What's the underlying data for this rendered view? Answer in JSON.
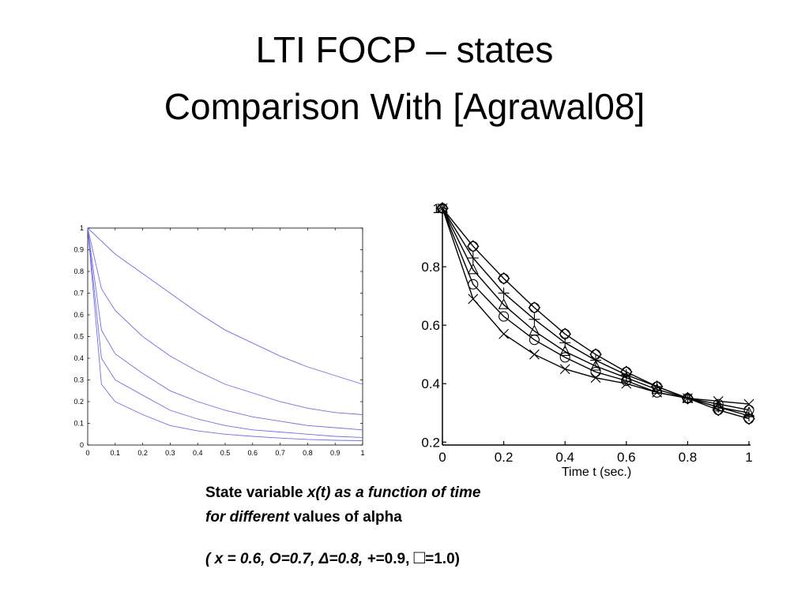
{
  "title": {
    "line1": "LTI FOCP – states",
    "line2": "Comparison With [Agrawal08]"
  },
  "caption": {
    "line1_a": "State variable ",
    "line1_b": "x(t) as a function of time",
    "line2_a": "for different",
    "line2_b": " values of alpha",
    "line3_a": "( x = 0.6,  O=0.7, Δ=0.8, +",
    "line3_b": "=0.9, ",
    "line3_box": "□",
    "line3_c": "=1.0)"
  },
  "chart_data": [
    {
      "type": "line",
      "title": "",
      "xlabel": "",
      "ylabel": "",
      "xlim": [
        0,
        1
      ],
      "ylim": [
        0,
        1
      ],
      "xticks": [
        "0",
        "0.1",
        "0.2",
        "0.3",
        "0.4",
        "0.5",
        "0.6",
        "0.7",
        "0.8",
        "0.9",
        "1"
      ],
      "yticks": [
        "0",
        "0.1",
        "0.2",
        "0.3",
        "0.4",
        "0.5",
        "0.6",
        "0.7",
        "0.8",
        "0.9",
        "1"
      ],
      "line_color": "#6f6fe6",
      "x": [
        0,
        0.05,
        0.1,
        0.2,
        0.3,
        0.4,
        0.5,
        0.6,
        0.7,
        0.8,
        0.9,
        1.0
      ],
      "series": [
        {
          "values": [
            1,
            0.94,
            0.88,
            0.79,
            0.7,
            0.61,
            0.53,
            0.47,
            0.41,
            0.36,
            0.32,
            0.28
          ]
        },
        {
          "values": [
            1,
            0.72,
            0.62,
            0.5,
            0.41,
            0.34,
            0.28,
            0.24,
            0.2,
            0.17,
            0.15,
            0.14
          ]
        },
        {
          "values": [
            1,
            0.53,
            0.42,
            0.33,
            0.25,
            0.2,
            0.16,
            0.13,
            0.11,
            0.09,
            0.08,
            0.07
          ]
        },
        {
          "values": [
            1,
            0.4,
            0.3,
            0.23,
            0.16,
            0.12,
            0.09,
            0.07,
            0.06,
            0.05,
            0.04,
            0.035
          ]
        },
        {
          "values": [
            1,
            0.28,
            0.2,
            0.14,
            0.09,
            0.065,
            0.05,
            0.04,
            0.032,
            0.026,
            0.022,
            0.02
          ]
        }
      ]
    },
    {
      "type": "line",
      "title": "",
      "xlabel": "Time t (sec.)",
      "ylabel": "",
      "xlim": [
        0,
        1
      ],
      "ylim": [
        0.19,
        1.0
      ],
      "xticks": [
        "0",
        "0.2",
        "0.4",
        "0.6",
        "0.8",
        "1"
      ],
      "yticks": [
        "0.2",
        "0.4",
        "0.6",
        "0.8",
        "1"
      ],
      "line_color": "#000000",
      "x": [
        0,
        0.1,
        0.2,
        0.3,
        0.4,
        0.5,
        0.6,
        0.7,
        0.8,
        0.9,
        1.0
      ],
      "series": [
        {
          "marker": "x",
          "values": [
            1.0,
            0.69,
            0.57,
            0.5,
            0.45,
            0.42,
            0.4,
            0.37,
            0.35,
            0.34,
            0.33
          ]
        },
        {
          "marker": "o",
          "values": [
            1.0,
            0.74,
            0.63,
            0.55,
            0.49,
            0.44,
            0.41,
            0.37,
            0.35,
            0.33,
            0.31
          ]
        },
        {
          "marker": "triangle",
          "values": [
            1.0,
            0.79,
            0.67,
            0.58,
            0.51,
            0.46,
            0.42,
            0.38,
            0.35,
            0.32,
            0.3
          ]
        },
        {
          "marker": "plus",
          "values": [
            1.0,
            0.83,
            0.71,
            0.62,
            0.54,
            0.48,
            0.43,
            0.39,
            0.35,
            0.32,
            0.29
          ]
        },
        {
          "marker": "square",
          "values": [
            1.0,
            0.87,
            0.76,
            0.66,
            0.57,
            0.5,
            0.44,
            0.39,
            0.35,
            0.31,
            0.28
          ]
        }
      ]
    }
  ]
}
